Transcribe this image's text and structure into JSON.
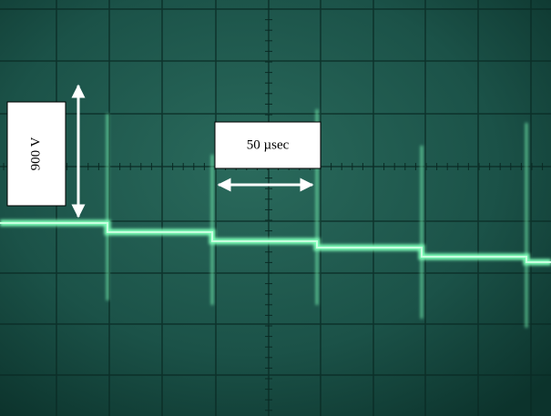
{
  "annotations": {
    "voltage_label": "900 V",
    "time_label": "50  µsec"
  }
}
